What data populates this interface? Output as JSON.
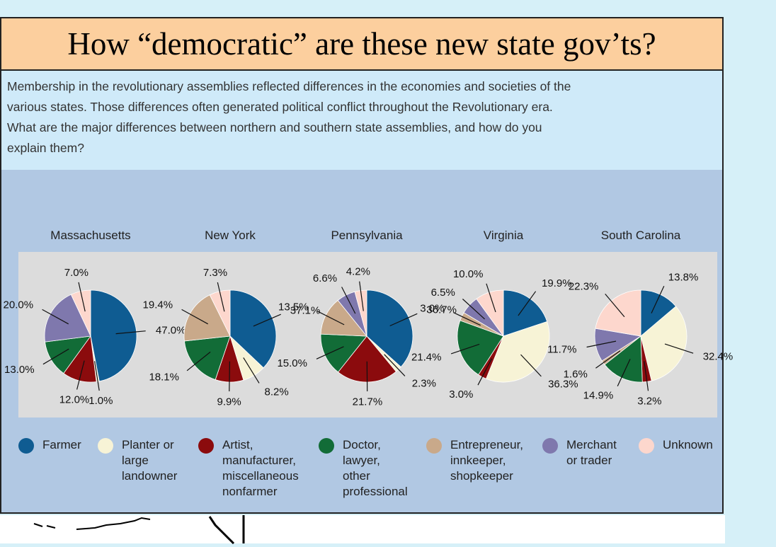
{
  "slide": {
    "title": "How “democratic” are these new state gov’ts?"
  },
  "intro": {
    "text": "Membership in the revolutionary assemblies reflected differences in the economies and societies of the various states. Those differences often generated political conflict throughout the Revolutionary era. What are the major differences between northern and southern state assemblies, and how do you explain them?"
  },
  "legend": [
    {
      "label": "Farmer",
      "color": "#0f5c92"
    },
    {
      "label": "Planter or\nlarge\nlandowner",
      "color": "#f7f3d6"
    },
    {
      "label": "Artist,\nmanufacturer,\nmiscellaneous\nnonfarmer",
      "color": "#8b0b0d"
    },
    {
      "label": "Doctor,\nlawyer,\nother\nprofessional",
      "color": "#126c37"
    },
    {
      "label": "Entrepreneur,\ninnkeeper,\nshopkeeper",
      "color": "#c9a98a"
    },
    {
      "label": "Merchant\nor trader",
      "color": "#7f78ad"
    },
    {
      "label": "Unknown",
      "color": "#fdd7cd"
    }
  ],
  "chart_data": {
    "type": "pie",
    "categories": [
      "Farmer",
      "Planter or large landowner",
      "Artist, manufacturer, miscellaneous nonfarmer",
      "Doctor, lawyer, other professional",
      "Entrepreneur, innkeeper, shopkeeper",
      "Merchant or trader",
      "Unknown"
    ],
    "colors": [
      "#0f5c92",
      "#f7f3d6",
      "#8b0b0d",
      "#126c37",
      "#c9a98a",
      "#7f78ad",
      "#fdd7cd"
    ],
    "pies": [
      {
        "name": "Massachusetts",
        "values": [
          47.0,
          1.0,
          12.0,
          13.0,
          0,
          20.0,
          7.0
        ],
        "labels": [
          "47.0%",
          "1.0%",
          "12.0%",
          "13.0%",
          "",
          "20.0%",
          "7.0%"
        ]
      },
      {
        "name": "New York",
        "values": [
          37.1,
          8.2,
          9.9,
          18.1,
          19.4,
          0,
          7.3
        ],
        "labels": [
          "37.1%",
          "8.2%",
          "9.9%",
          "18.1%",
          "19.4%",
          "",
          "7.3%"
        ]
      },
      {
        "name": "Pennsylvania",
        "values": [
          36.7,
          2.3,
          21.7,
          15.0,
          13.5,
          6.6,
          4.2
        ],
        "labels": [
          "36.7%",
          "2.3%",
          "21.7%",
          "15.0%",
          "13.5%",
          "6.6%",
          "4.2%"
        ]
      },
      {
        "name": "Virginia",
        "values": [
          19.9,
          36.3,
          3.0,
          21.4,
          3.0,
          6.5,
          10.0
        ],
        "labels": [
          "19.9%",
          "36.3%",
          "3.0%",
          "21.4%",
          "3.0%",
          "6.5%",
          "10.0%"
        ]
      },
      {
        "name": "South Carolina",
        "values": [
          13.8,
          32.4,
          3.2,
          14.9,
          1.6,
          11.7,
          22.3
        ],
        "labels": [
          "13.8%",
          "32.4%",
          "3.2%",
          "14.9%",
          "1.6%",
          "11.7%",
          "22.3%"
        ]
      }
    ]
  }
}
